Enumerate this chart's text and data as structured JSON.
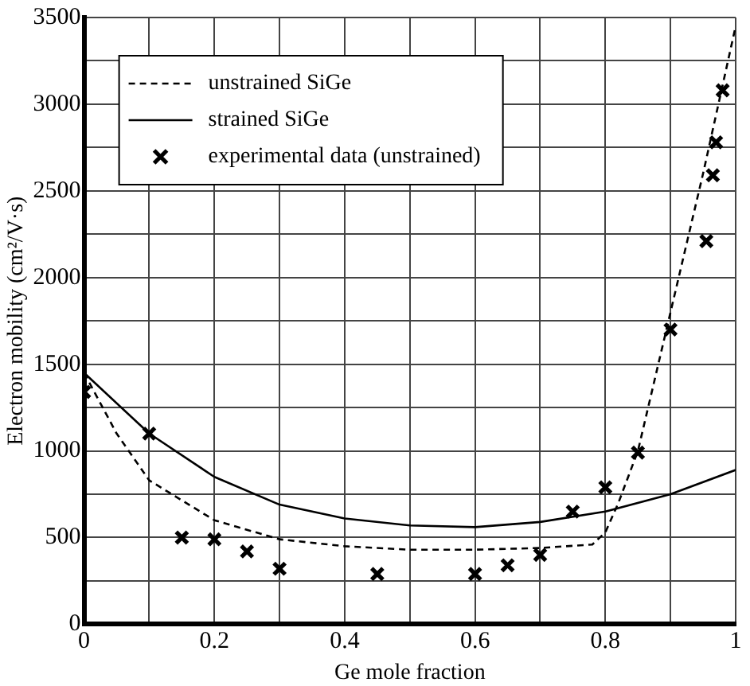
{
  "chart_data": {
    "type": "line",
    "xlabel": "Ge mole fraction",
    "ylabel": "Electron mobility (cm²/V·s)",
    "xlim": [
      0,
      1
    ],
    "ylim": [
      0,
      3500
    ],
    "xticks": [
      0,
      {
        "value": 0.1,
        "label": null
      },
      0.2,
      {
        "value": 0.3,
        "label": null
      },
      0.4,
      {
        "value": 0.5,
        "label": null
      },
      0.6,
      {
        "value": 0.7,
        "label": null
      },
      0.8,
      {
        "value": 0.9,
        "label": null
      },
      1
    ],
    "yticks": [
      0,
      {
        "value": 250,
        "label": null
      },
      500,
      {
        "value": 750,
        "label": null
      },
      1000,
      {
        "value": 1250,
        "label": null
      },
      1500,
      {
        "value": 1750,
        "label": null
      },
      2000,
      {
        "value": 2250,
        "label": null
      },
      2500,
      {
        "value": 2750,
        "label": null
      },
      3000,
      {
        "value": 3250,
        "label": null
      },
      3500
    ],
    "grid": true,
    "legend": "top left",
    "series": [
      {
        "name": "unstrained SiGe",
        "line_style": "dashed",
        "marker": "none",
        "color": "#000000",
        "x": [
          0,
          0.05,
          0.1,
          0.2,
          0.3,
          0.4,
          0.5,
          0.6,
          0.7,
          0.78,
          0.8,
          0.82,
          0.85,
          0.9,
          0.95,
          1.0
        ],
        "values": [
          1450,
          1100,
          830,
          600,
          490,
          450,
          430,
          430,
          440,
          460,
          530,
          700,
          1000,
          1800,
          2600,
          3450
        ]
      },
      {
        "name": "strained SiGe",
        "line_style": "solid",
        "marker": "none",
        "color": "#000000",
        "x": [
          0,
          0.1,
          0.2,
          0.3,
          0.4,
          0.5,
          0.6,
          0.7,
          0.8,
          0.9,
          1.0
        ],
        "values": [
          1450,
          1100,
          850,
          690,
          610,
          570,
          560,
          590,
          650,
          750,
          890
        ]
      },
      {
        "name": "experimental data (unstrained)",
        "type": "scatter",
        "marker": "cross",
        "color": "#000000",
        "x": [
          0,
          0.1,
          0.15,
          0.2,
          0.25,
          0.3,
          0.45,
          0.6,
          0.65,
          0.7,
          0.75,
          0.8,
          0.85,
          0.9,
          0.955,
          0.965,
          0.97,
          0.98
        ],
        "values": [
          1340,
          1100,
          500,
          490,
          420,
          320,
          290,
          290,
          340,
          400,
          650,
          790,
          990,
          1700,
          2210,
          2590,
          2780,
          3080
        ]
      }
    ]
  }
}
